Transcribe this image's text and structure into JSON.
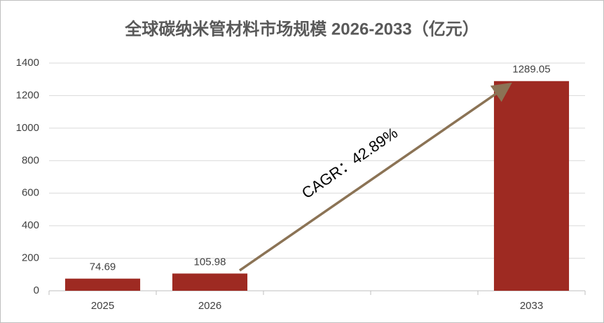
{
  "chart_data": {
    "type": "bar",
    "title": "全球碳纳米管材料市场规模 2026-2033（亿元）",
    "categories": [
      "2025",
      "2026",
      null,
      null,
      "2033"
    ],
    "values": [
      74.69,
      105.98,
      null,
      null,
      1289.05
    ],
    "color": "#9e2a22",
    "ylim": [
      0,
      1400
    ],
    "yticks": [
      0,
      200,
      400,
      600,
      800,
      1000,
      1200,
      1400
    ],
    "grid": true,
    "annotation": "CAGR：42.89%"
  }
}
